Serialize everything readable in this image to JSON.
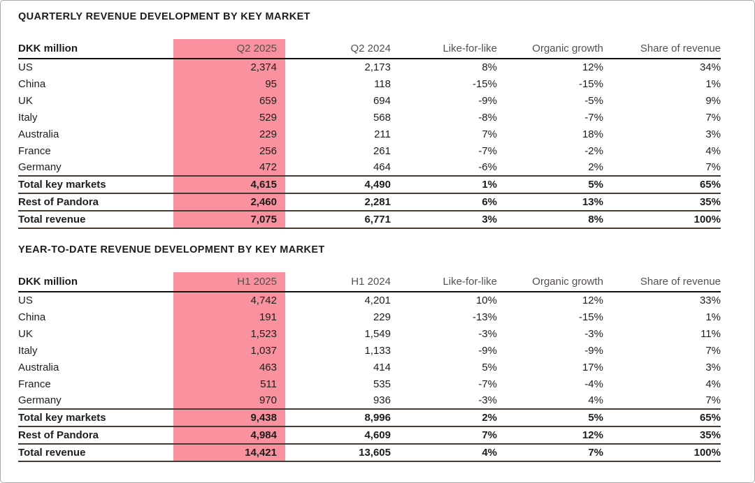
{
  "colors": {
    "highlight_pink": "#F9919F",
    "header_text_gray": "#55504c",
    "body_text": "#1d1d1b",
    "header_rule": "#14120f",
    "total_rule": "#453b31",
    "page_border": "#a9a9a9"
  },
  "table1": {
    "title": "QUARTERLY REVENUE DEVELOPMENT BY KEY MARKET",
    "headers": [
      "DKK million",
      "Q2 2025",
      "Q2 2024",
      "Like-for-like",
      "Organic growth",
      "Share of revenue"
    ],
    "rows": [
      [
        "US",
        "2,374",
        "2,173",
        "8%",
        "12%",
        "34%"
      ],
      [
        "China",
        "95",
        "118",
        "-15%",
        "-15%",
        "1%"
      ],
      [
        "UK",
        "659",
        "694",
        "-9%",
        "-5%",
        "9%"
      ],
      [
        "Italy",
        "529",
        "568",
        "-8%",
        "-7%",
        "7%"
      ],
      [
        "Australia",
        "229",
        "211",
        "7%",
        "18%",
        "3%"
      ],
      [
        "France",
        "256",
        "261",
        "-7%",
        "-2%",
        "4%"
      ],
      [
        "Germany",
        "472",
        "464",
        "-6%",
        "2%",
        "7%"
      ]
    ],
    "totals": [
      [
        "Total key markets",
        "4,615",
        "4,490",
        "1%",
        "5%",
        "65%"
      ],
      [
        "Rest of Pandora",
        "2,460",
        "2,281",
        "6%",
        "13%",
        "35%"
      ],
      [
        "Total revenue",
        "7,075",
        "6,771",
        "3%",
        "8%",
        "100%"
      ]
    ]
  },
  "table2": {
    "title": "YEAR-TO-DATE REVENUE DEVELOPMENT BY KEY MARKET",
    "headers": [
      "DKK million",
      "H1 2025",
      "H1 2024",
      "Like-for-like",
      "Organic growth",
      "Share of revenue"
    ],
    "rows": [
      [
        "US",
        "4,742",
        "4,201",
        "10%",
        "12%",
        "33%"
      ],
      [
        "China",
        "191",
        "229",
        "-13%",
        "-15%",
        "1%"
      ],
      [
        "UK",
        "1,523",
        "1,549",
        "-3%",
        "-3%",
        "11%"
      ],
      [
        "Italy",
        "1,037",
        "1,133",
        "-9%",
        "-9%",
        "7%"
      ],
      [
        "Australia",
        "463",
        "414",
        "5%",
        "17%",
        "3%"
      ],
      [
        "France",
        "511",
        "535",
        "-7%",
        "-4%",
        "4%"
      ],
      [
        "Germany",
        "970",
        "936",
        "-3%",
        "4%",
        "7%"
      ]
    ],
    "totals": [
      [
        "Total key markets",
        "9,438",
        "8,996",
        "2%",
        "5%",
        "65%"
      ],
      [
        "Rest of Pandora",
        "4,984",
        "4,609",
        "7%",
        "12%",
        "35%"
      ],
      [
        "Total revenue",
        "14,421",
        "13,605",
        "4%",
        "7%",
        "100%"
      ]
    ]
  }
}
